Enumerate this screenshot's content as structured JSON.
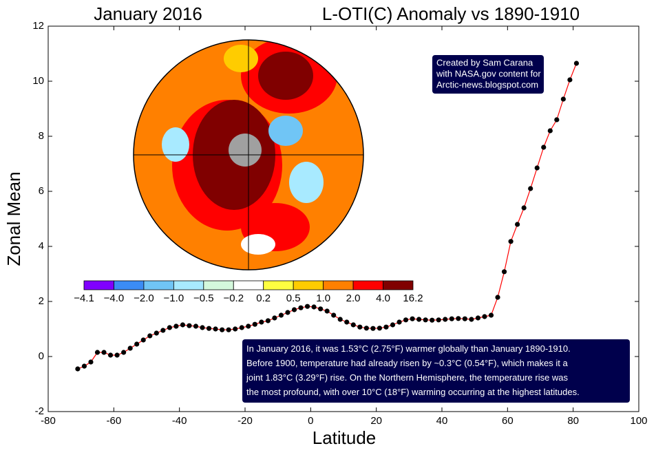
{
  "chart_data": {
    "type": "line",
    "title": "January 2016",
    "subtitle": "L-OTI(C) Anomaly vs 1890-1910",
    "x_label": "Latitude",
    "y_label": "Zonal Mean",
    "xlim": [
      -80,
      100
    ],
    "xticks": [
      -80,
      -60,
      -40,
      -20,
      0,
      20,
      40,
      60,
      80,
      100
    ],
    "ylim": [
      -2,
      12
    ],
    "yticks": [
      -2,
      0,
      2,
      4,
      6,
      8,
      10,
      12
    ],
    "x": [
      -71,
      -69,
      -67,
      -65,
      -63,
      -61,
      -59,
      -57,
      -55,
      -53,
      -51,
      -49,
      -47,
      -45,
      -43,
      -41,
      -39,
      -37,
      -35,
      -33,
      -31,
      -29,
      -27,
      -25,
      -23,
      -21,
      -19,
      -17,
      -15,
      -13,
      -11,
      -9,
      -7,
      -5,
      -3,
      -1,
      1,
      3,
      5,
      7,
      9,
      11,
      13,
      15,
      17,
      19,
      21,
      23,
      25,
      27,
      29,
      31,
      33,
      35,
      37,
      39,
      41,
      43,
      45,
      47,
      49,
      51,
      53,
      55,
      57,
      59,
      61,
      63,
      65,
      67,
      69,
      71,
      73,
      75,
      77,
      79,
      81
    ],
    "series": [
      {
        "color": "#ff0000",
        "values": [
          -0.45,
          -0.35,
          -0.2,
          0.15,
          0.15,
          0.05,
          0.05,
          0.15,
          0.3,
          0.45,
          0.6,
          0.75,
          0.85,
          0.95,
          1.05,
          1.1,
          1.15,
          1.12,
          1.1,
          1.05,
          1.02,
          1.0,
          0.97,
          0.97,
          1.0,
          1.05,
          1.1,
          1.17,
          1.25,
          1.3,
          1.4,
          1.5,
          1.6,
          1.7,
          1.77,
          1.82,
          1.8,
          1.73,
          1.65,
          1.5,
          1.35,
          1.25,
          1.15,
          1.07,
          1.03,
          1.02,
          1.03,
          1.07,
          1.15,
          1.25,
          1.33,
          1.37,
          1.35,
          1.33,
          1.32,
          1.33,
          1.35,
          1.37,
          1.38,
          1.37,
          1.35,
          1.4,
          1.45,
          1.5,
          2.15,
          3.08,
          4.18,
          4.8,
          5.4,
          6.1,
          6.85,
          7.6,
          8.2,
          8.6,
          9.35,
          10.05,
          10.65
        ]
      }
    ],
    "colorbar": {
      "labels": [
        "−4.1",
        "−4.0",
        "−2.0",
        "−1.0",
        "−0.5",
        "−0.2",
        "0.2",
        "0.5",
        "1.0",
        "2.0",
        "4.0",
        "16.2"
      ],
      "colors": [
        "#8000ff",
        "#3b8cf5",
        "#70c5f5",
        "#a8eaff",
        "#d4f8dc",
        "#ffffff",
        "#ffff40",
        "#ffcc00",
        "#ff8000",
        "#ff0000",
        "#800000"
      ]
    },
    "annotations": [
      [
        "Created by Sam Carana",
        "with NASA.gov content for",
        "Arctic-news.blogspot.com"
      ],
      [
        "In January 2016, it was 1.53°C (2.75°F) warmer globally than January 1890-1910.",
        "Before 1900, temperature had already risen by ~0.3°C (0.54°F), which makes it a",
        "joint 1.83°C (3.29°F) rise. On the Northern Hemisphere, the temperature rise was",
        "the most profound, with over 10°C (18°F) warming occurring at the highest latitudes."
      ]
    ]
  }
}
